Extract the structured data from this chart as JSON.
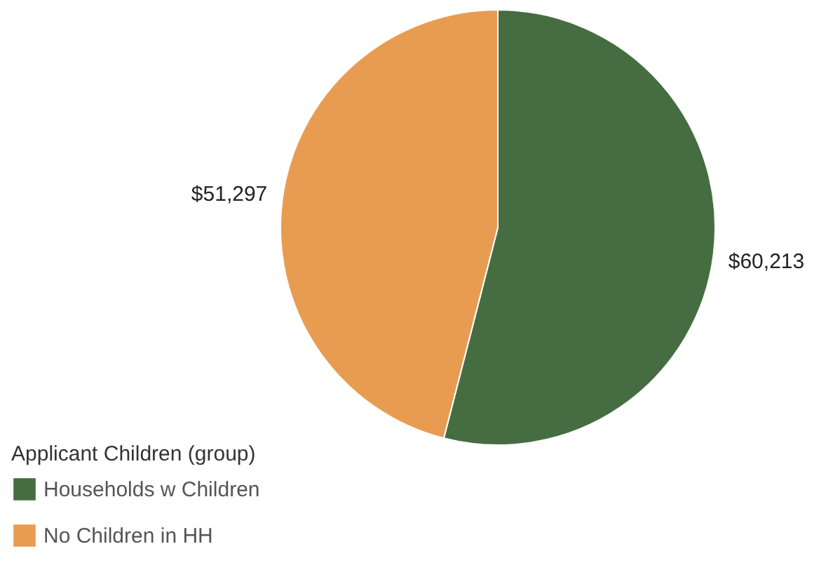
{
  "chart_data": {
    "type": "pie",
    "legend_title": "Applicant Children (group)",
    "categories": [
      "Households w Children",
      "No Children in HH"
    ],
    "values": [
      60213,
      51297
    ],
    "colors": [
      "#466d42",
      "#e89c52"
    ],
    "value_labels": [
      "$60,213",
      "$51,297"
    ],
    "legend": "bottom left"
  }
}
